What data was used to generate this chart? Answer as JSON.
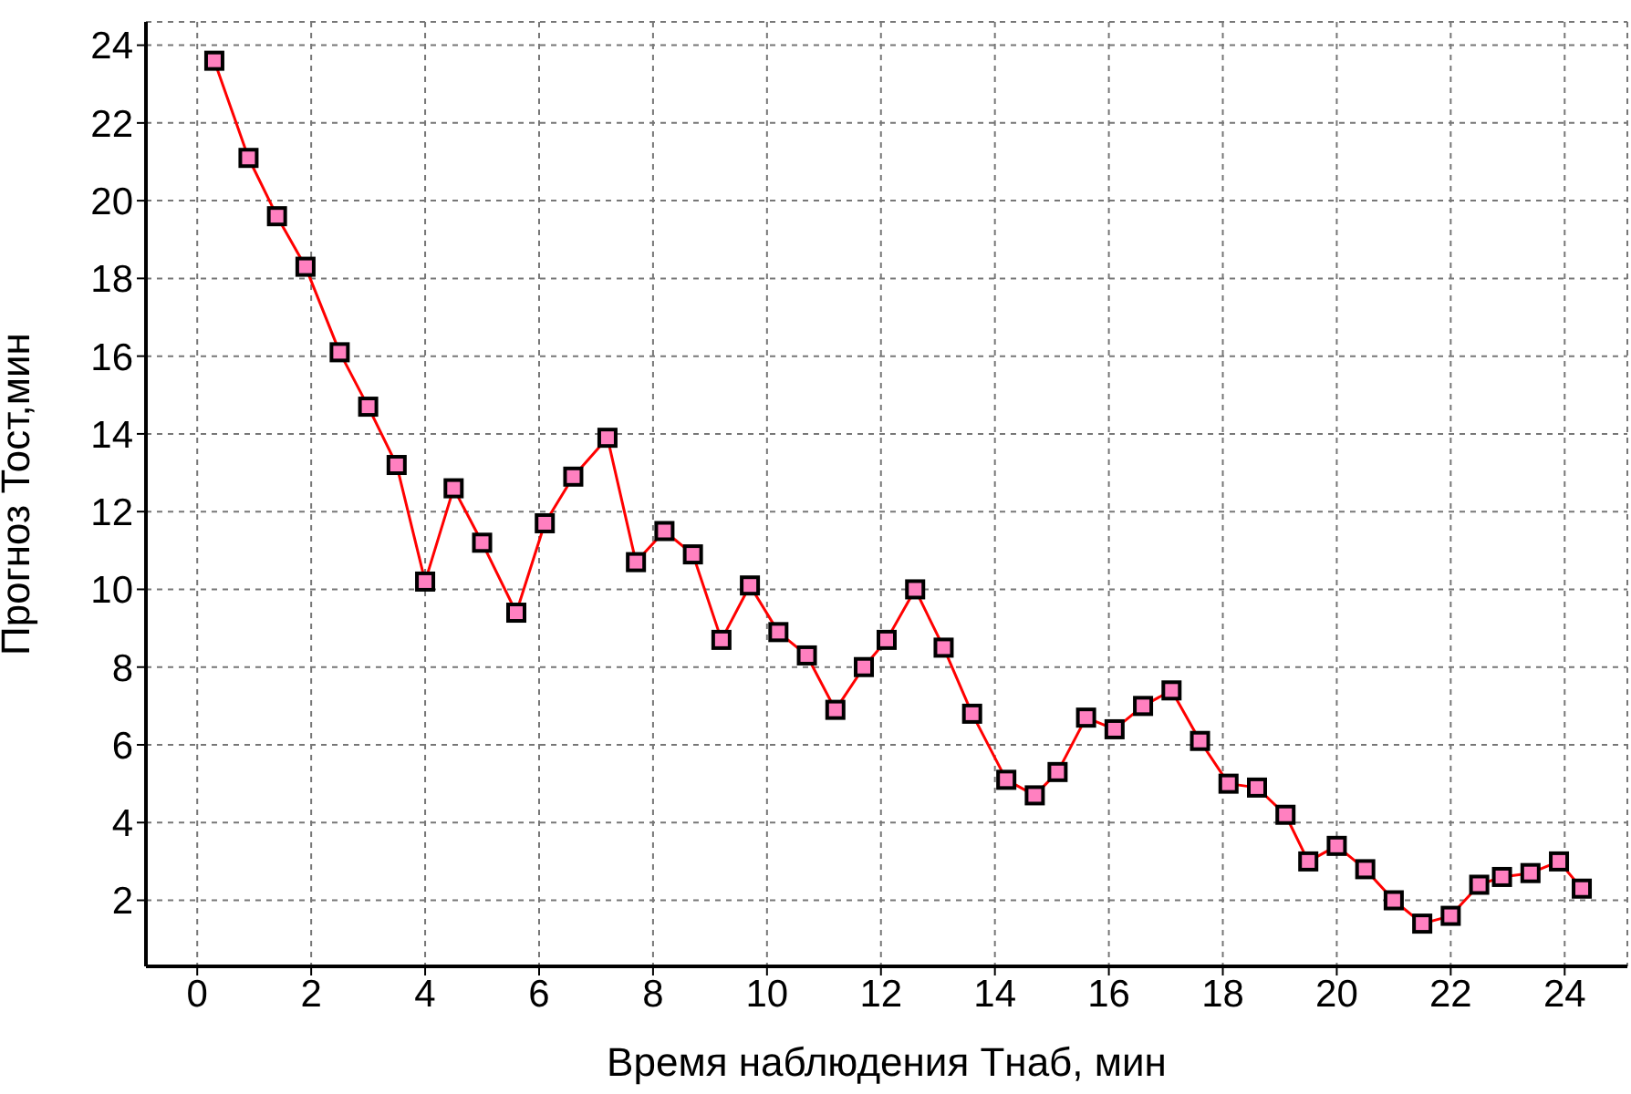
{
  "chart_data": {
    "type": "line",
    "xlabel": "Время наблюдения Тнаб, мин",
    "ylabel": "Прогноз Тост,мин",
    "x": [
      0.3,
      0.9,
      1.4,
      1.9,
      2.5,
      3.0,
      3.5,
      4.0,
      4.5,
      5.0,
      5.6,
      6.1,
      6.6,
      7.2,
      7.7,
      8.2,
      8.7,
      9.2,
      9.7,
      10.2,
      10.7,
      11.2,
      11.7,
      12.1,
      12.6,
      13.1,
      13.6,
      14.2,
      14.7,
      15.1,
      15.6,
      16.1,
      16.6,
      17.1,
      17.6,
      18.1,
      18.6,
      19.1,
      19.5,
      20.0,
      20.5,
      21.0,
      21.5,
      22.0,
      22.5,
      22.9,
      23.4,
      23.9,
      24.3
    ],
    "series": [
      {
        "color": "#ff0000",
        "values": [
          23.6,
          21.1,
          19.6,
          18.3,
          16.1,
          14.7,
          13.2,
          10.2,
          12.6,
          11.2,
          9.4,
          11.7,
          12.9,
          13.9,
          10.7,
          11.5,
          10.9,
          8.7,
          10.1,
          8.9,
          8.3,
          6.9,
          8.0,
          8.7,
          10.0,
          8.5,
          6.8,
          5.1,
          4.7,
          5.3,
          6.7,
          6.4,
          7.0,
          7.4,
          6.1,
          5.0,
          4.9,
          4.2,
          3.0,
          3.4,
          2.8,
          2.0,
          1.4,
          1.6,
          2.4,
          2.6,
          2.7,
          3.0,
          2.3
        ]
      }
    ],
    "xlim": [
      -0.9,
      25.1
    ],
    "ylim": [
      0.3,
      24.6
    ],
    "xticks": [
      0,
      2,
      4,
      6,
      8,
      10,
      12,
      14,
      16,
      18,
      20,
      22,
      24
    ],
    "yticks": [
      2,
      4,
      6,
      8,
      10,
      12,
      14,
      16,
      18,
      20,
      22,
      24
    ],
    "grid": true,
    "marker": "square",
    "line_style": "solid"
  }
}
